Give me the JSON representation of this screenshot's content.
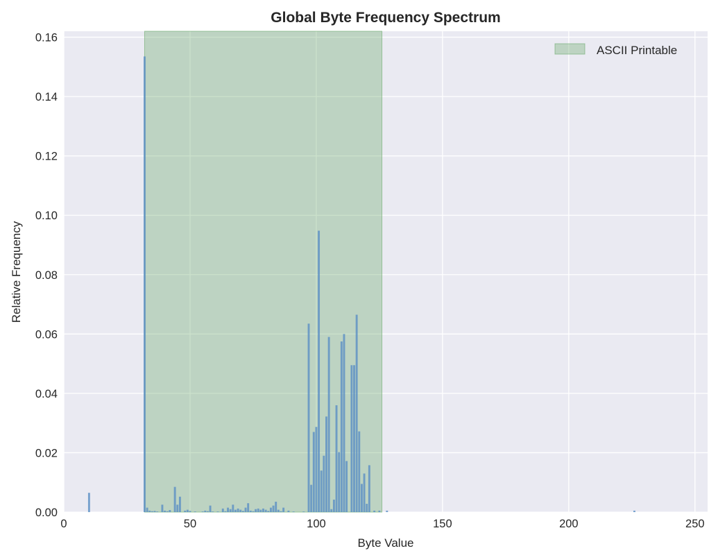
{
  "chart_data": {
    "type": "bar",
    "title": "Global Byte Frequency Spectrum",
    "xlabel": "Byte Value",
    "ylabel": "Relative Frequency",
    "xlim": [
      0,
      255
    ],
    "ylim": [
      0,
      0.162
    ],
    "xticks": [
      0,
      50,
      100,
      150,
      200,
      250
    ],
    "yticks": [
      0.0,
      0.02,
      0.04,
      0.06,
      0.08,
      0.1,
      0.12,
      0.14,
      0.16
    ],
    "grid": true,
    "legend_placement": "top-right",
    "bar_color": "#5a8fc4",
    "highlight": {
      "name": "ASCII Printable",
      "x_start": 32,
      "x_end": 126,
      "color": "#6aaa6a"
    },
    "x": [
      10,
      32,
      33,
      34,
      35,
      36,
      37,
      39,
      40,
      41,
      42,
      44,
      45,
      46,
      48,
      49,
      50,
      52,
      55,
      56,
      57,
      58,
      59,
      61,
      63,
      64,
      65,
      66,
      67,
      68,
      69,
      70,
      71,
      72,
      73,
      74,
      75,
      76,
      77,
      78,
      79,
      80,
      81,
      82,
      83,
      84,
      85,
      86,
      87,
      89,
      91,
      95,
      97,
      98,
      99,
      100,
      101,
      102,
      103,
      104,
      105,
      106,
      107,
      108,
      109,
      110,
      111,
      112,
      114,
      115,
      116,
      117,
      118,
      119,
      120,
      121,
      123,
      125,
      128,
      226
    ],
    "values": [
      0.0065,
      0.1535,
      0.0015,
      0.0005,
      0.0003,
      0.0004,
      0.0002,
      0.0025,
      0.0005,
      0.0003,
      0.0007,
      0.0085,
      0.0025,
      0.0052,
      0.0005,
      0.0008,
      0.0004,
      0.0002,
      0.0002,
      0.0005,
      0.0003,
      0.0022,
      0.0002,
      0.0002,
      0.0012,
      0.0003,
      0.0015,
      0.001,
      0.0025,
      0.0008,
      0.0012,
      0.0008,
      0.0004,
      0.0015,
      0.003,
      0.0005,
      0.0003,
      0.001,
      0.0012,
      0.0008,
      0.0012,
      0.0008,
      0.0004,
      0.0015,
      0.0022,
      0.0035,
      0.0008,
      0.0003,
      0.0015,
      0.0005,
      0.0002,
      0.0002,
      0.0635,
      0.0092,
      0.027,
      0.0287,
      0.0948,
      0.014,
      0.019,
      0.0322,
      0.059,
      0.001,
      0.0042,
      0.036,
      0.0202,
      0.0575,
      0.06,
      0.0172,
      0.0495,
      0.0495,
      0.0665,
      0.0272,
      0.0095,
      0.013,
      0.0028,
      0.0158,
      0.0005,
      0.0005,
      0.0005,
      0.0005
    ]
  }
}
